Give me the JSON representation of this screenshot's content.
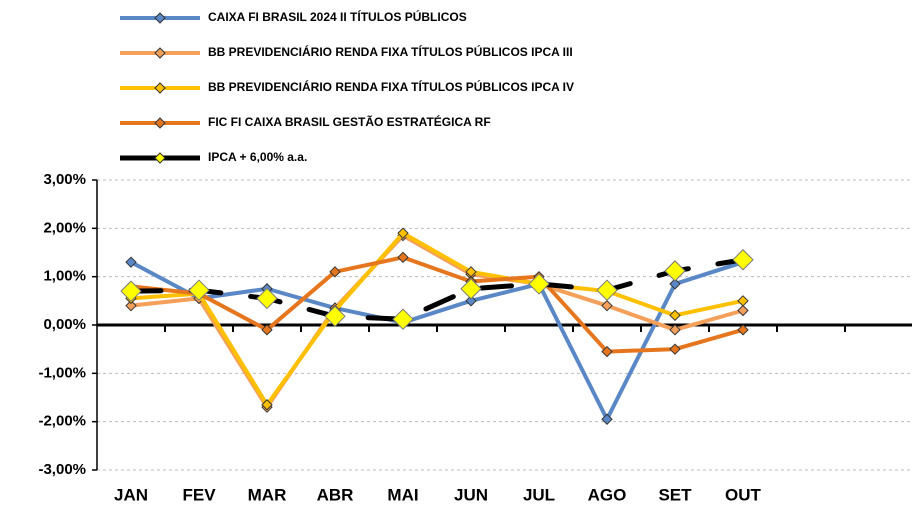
{
  "chart_data": {
    "type": "line",
    "categories": [
      "JAN",
      "FEV",
      "MAR",
      "ABR",
      "MAI",
      "JUN",
      "JUL",
      "AGO",
      "SET",
      "OUT",
      null,
      null
    ],
    "series": [
      {
        "name": "CAIXA FI BRASIL 2024 II TÍTULOS PÚBLICOS",
        "color": "#5a87c5",
        "values": [
          1.3,
          0.55,
          0.75,
          0.35,
          0.05,
          0.5,
          0.85,
          -1.95,
          0.85,
          1.3,
          null,
          null
        ]
      },
      {
        "name": "BB PREVIDENCIÁRIO RENDA FIXA TÍTULOS PÚBLICOS IPCA III",
        "color": "#f4a05a",
        "values": [
          0.4,
          0.55,
          -1.7,
          0.35,
          1.85,
          1.05,
          0.85,
          0.4,
          -0.1,
          0.3,
          null,
          null
        ]
      },
      {
        "name": "BB PREVIDENCIÁRIO RENDA FIXA TÍTULOS PÚBLICOS IPCA IV",
        "color": "#ffc000",
        "values": [
          0.55,
          0.65,
          -1.65,
          0.3,
          1.9,
          1.1,
          0.85,
          0.7,
          0.2,
          0.5,
          null,
          null
        ]
      },
      {
        "name": "FIC FI CAIXA BRASIL GESTÃO ESTRATÉGICA RF",
        "color": "#e6761e",
        "values": [
          0.8,
          0.65,
          -0.1,
          1.1,
          1.4,
          0.9,
          1.0,
          -0.55,
          -0.5,
          -0.1,
          null,
          null
        ]
      },
      {
        "name": "IPCA + 6,00% a.a.",
        "color": "#000000",
        "marker_color": "#ffff00",
        "dashed": true,
        "values": [
          0.7,
          0.72,
          0.55,
          0.18,
          0.12,
          0.75,
          0.85,
          0.72,
          1.12,
          1.35,
          null,
          null
        ]
      }
    ],
    "ylim": [
      -3,
      3
    ],
    "yticks": [
      {
        "value": -3,
        "label": "-3,00%"
      },
      {
        "value": -2,
        "label": "-2,00%"
      },
      {
        "value": -1,
        "label": "-1,00%"
      },
      {
        "value": 0,
        "label": "0,00%"
      },
      {
        "value": 1,
        "label": "1,00%"
      },
      {
        "value": 2,
        "label": "2,00%"
      },
      {
        "value": 3,
        "label": "3,00%"
      }
    ],
    "grid": true
  }
}
